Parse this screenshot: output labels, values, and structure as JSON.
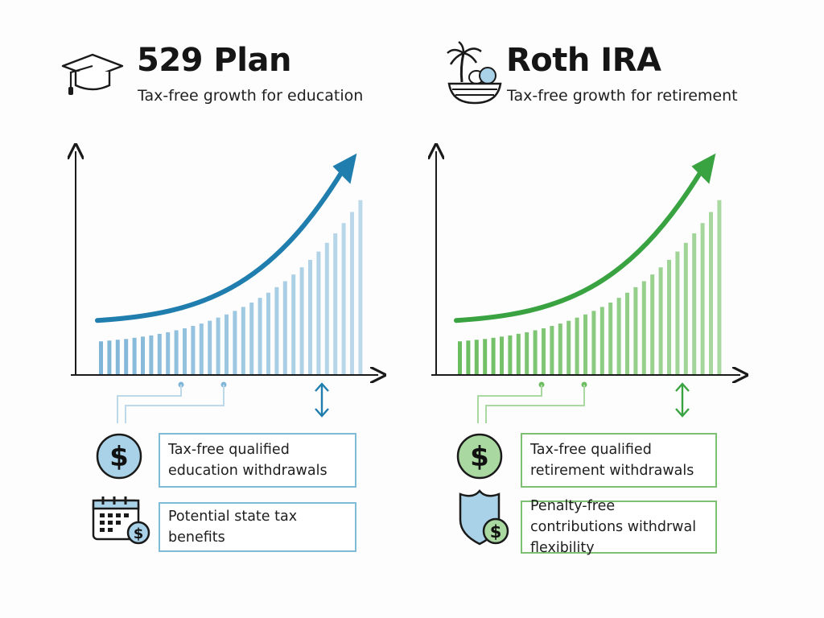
{
  "plans": [
    {
      "title": "529 Plan",
      "subtitle": "Tax-free growth for education",
      "accent_dark": "#1f7eae",
      "accent_bar": "#7fb6d8",
      "accent_light": "#bcd9ea",
      "icon_header": "graduation-cap-icon",
      "benefits": [
        {
          "icon": "dollar-coin-icon",
          "text": "Tax-free qualified education withdrawals"
        },
        {
          "icon": "calendar-dollar-icon",
          "text": "Potential state tax benefits"
        }
      ]
    },
    {
      "title": "Roth IRA",
      "subtitle": "Tax-free growth for retirement",
      "accent_dark": "#39a341",
      "accent_bar": "#6cbd60",
      "accent_light": "#a9d8a0",
      "icon_header": "palm-tree-basket-icon",
      "benefits": [
        {
          "icon": "dollar-coin-icon",
          "text": "Tax-free qualified retirement withdrawals"
        },
        {
          "icon": "shield-dollar-icon",
          "text": "Penalty-free contributions withdrwal flexibility"
        }
      ]
    }
  ],
  "chart_data": [
    {
      "type": "bar",
      "title": "",
      "xlabel": "",
      "ylabel": "",
      "trend": "exponential growth",
      "values": [
        8.5,
        8.7,
        8.9,
        9.1,
        9.4,
        9.7,
        10.0,
        10.4,
        10.8,
        11.3,
        11.8,
        12.4,
        13.0,
        13.7,
        14.5,
        15.3,
        16.2,
        17.2,
        18.3,
        19.5,
        20.8,
        22.2,
        23.7,
        25.4,
        27.2,
        29.1,
        31.2,
        33.4,
        35.8,
        38.4,
        41.2,
        44.2
      ]
    },
    {
      "type": "bar",
      "title": "",
      "xlabel": "",
      "ylabel": "",
      "trend": "exponential growth",
      "values": [
        8.5,
        8.7,
        8.9,
        9.1,
        9.4,
        9.7,
        10.0,
        10.4,
        10.8,
        11.3,
        11.8,
        12.4,
        13.0,
        13.7,
        14.5,
        15.3,
        16.2,
        17.2,
        18.3,
        19.5,
        20.8,
        22.2,
        23.7,
        25.4,
        27.2,
        29.1,
        31.2,
        33.4,
        35.8,
        38.4,
        41.2,
        44.2
      ]
    }
  ]
}
